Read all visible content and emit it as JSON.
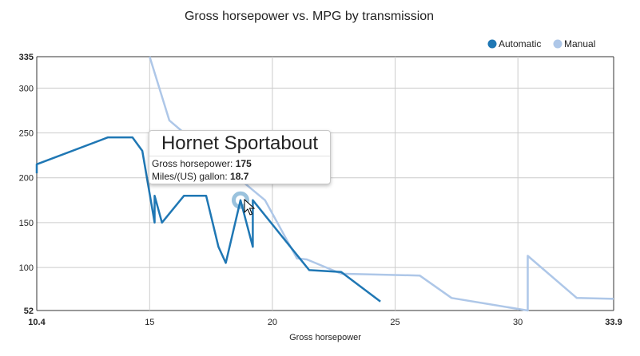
{
  "chart_data": {
    "type": "line",
    "title": "Gross horsepower vs. MPG by transmission",
    "xlabel": "Gross horsepower",
    "ylabel": "",
    "xlim": [
      10.4,
      33.9
    ],
    "ylim": [
      52,
      335
    ],
    "x_ticks": [
      "10.4",
      "15",
      "20",
      "25",
      "30",
      "33.9"
    ],
    "y_ticks": [
      "52",
      "100",
      "150",
      "200",
      "250",
      "300",
      "335"
    ],
    "grid": true,
    "legend_position": "top-right",
    "series": [
      {
        "name": "Automatic",
        "color": "#1f77b4",
        "points": [
          [
            10.4,
            205
          ],
          [
            10.4,
            215
          ],
          [
            13.3,
            245
          ],
          [
            14.3,
            245
          ],
          [
            14.7,
            230
          ],
          [
            15.2,
            150
          ],
          [
            15.2,
            180
          ],
          [
            15.5,
            150
          ],
          [
            16.4,
            180
          ],
          [
            17.3,
            180
          ],
          [
            17.8,
            123
          ],
          [
            18.1,
            105
          ],
          [
            18.7,
            175
          ],
          [
            19.2,
            123
          ],
          [
            19.2,
            175
          ],
          [
            21.5,
            97
          ],
          [
            22.8,
            95
          ],
          [
            24.4,
            62
          ]
        ]
      },
      {
        "name": "Manual",
        "color": "#aec7e8",
        "points": [
          [
            15.0,
            335
          ],
          [
            15.8,
            264
          ],
          [
            16.4,
            250
          ],
          [
            19.7,
            175
          ],
          [
            21.0,
            110
          ],
          [
            21.4,
            109
          ],
          [
            22.8,
            93
          ],
          [
            26.0,
            91
          ],
          [
            27.3,
            66
          ],
          [
            30.4,
            52
          ],
          [
            30.4,
            113
          ],
          [
            32.4,
            66
          ],
          [
            33.9,
            65
          ]
        ]
      }
    ],
    "highlight": {
      "series": "Automatic",
      "x": 18.7,
      "y": 175
    }
  },
  "tooltip": {
    "title": "Hornet Sportabout",
    "hp_label": "Gross horsepower:",
    "hp_value": "175",
    "mpg_label": "Miles/(US) gallon:",
    "mpg_value": "18.7"
  }
}
